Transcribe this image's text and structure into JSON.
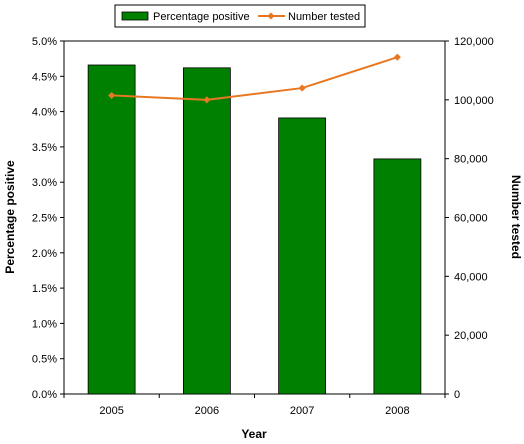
{
  "chart_data": {
    "type": "bar",
    "categories": [
      "2005",
      "2006",
      "2007",
      "2008"
    ],
    "series": [
      {
        "name": "Percentage positive",
        "type": "bar",
        "axis": "left",
        "color": "#008000",
        "values": [
          4.66,
          4.62,
          3.91,
          3.33
        ]
      },
      {
        "name": "Number tested",
        "type": "line",
        "axis": "right",
        "color": "#E87722",
        "values": [
          101500,
          100000,
          104000,
          114500
        ]
      }
    ],
    "xlabel": "Year",
    "ylabel": "Percentage positive",
    "y2label": "Number tested",
    "ylim": [
      0,
      5
    ],
    "y2lim": [
      0,
      120000
    ],
    "yticks": [
      "0.0%",
      "0.5%",
      "1.0%",
      "1.5%",
      "2.0%",
      "2.5%",
      "3.0%",
      "3.5%",
      "4.0%",
      "4.5%",
      "5.0%"
    ],
    "y2ticks": [
      "0",
      "20,000",
      "40,000",
      "60,000",
      "80,000",
      "100,000",
      "120,000"
    ],
    "grid": false,
    "legend": "top"
  }
}
